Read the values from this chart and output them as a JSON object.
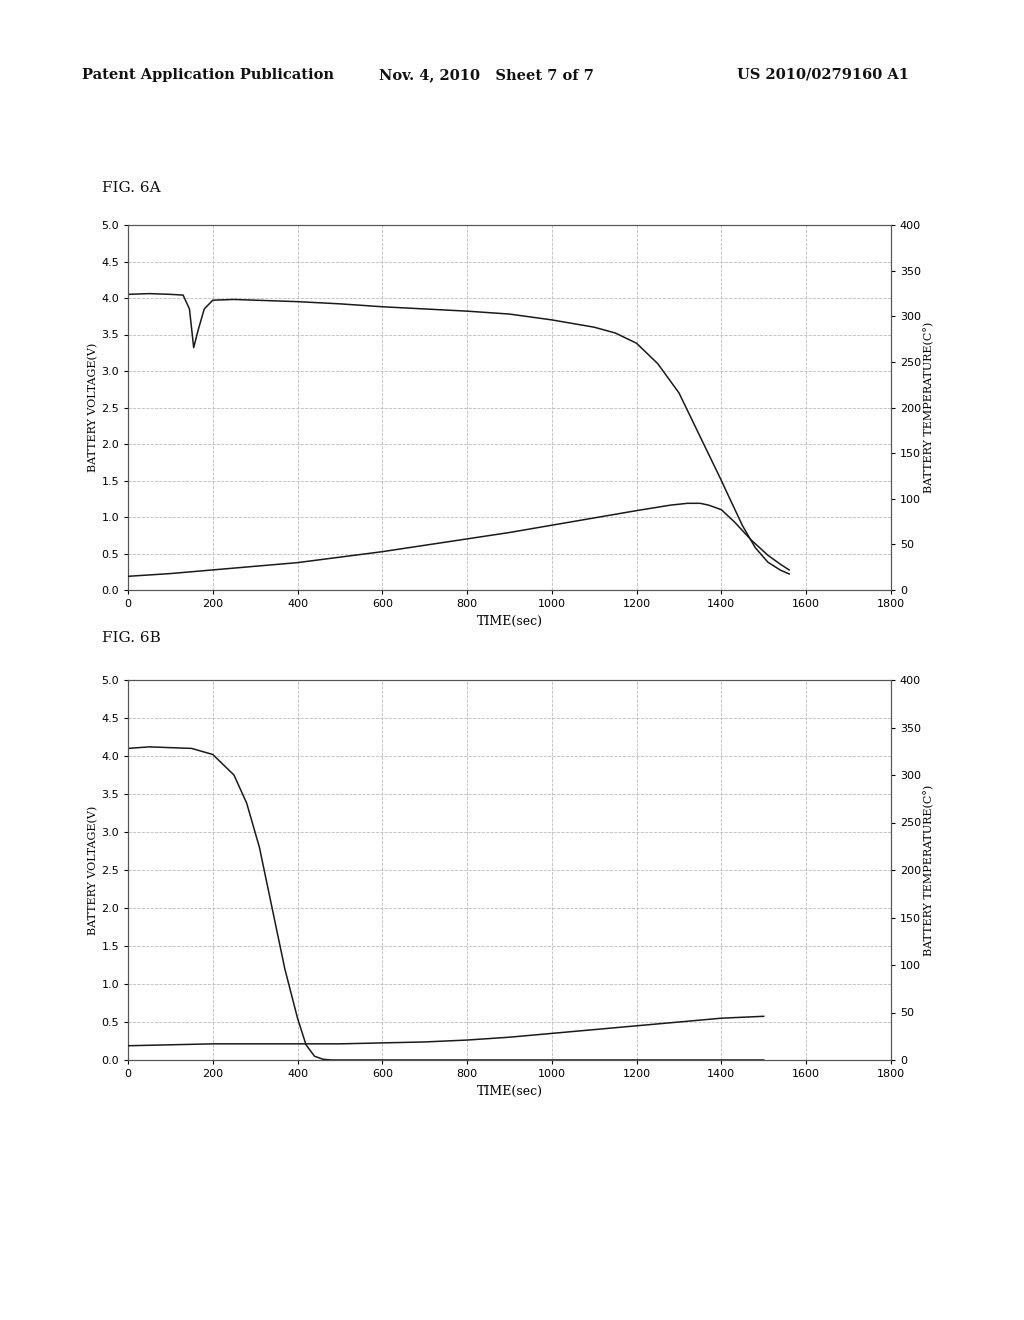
{
  "header_left": "Patent Application Publication",
  "header_mid": "Nov. 4, 2010   Sheet 7 of 7",
  "header_right": "US 2010/0279160 A1",
  "fig6a_label": "FIG. 6A",
  "fig6b_label": "FIG. 6B",
  "ylabel_left": "BATTERY VOLTAGE(V)",
  "ylabel_right": "BATTERY TEMPERATURE(C°)",
  "xlabel": "TIME(sec)",
  "xlim": [
    0,
    1800
  ],
  "ylim_left": [
    0,
    5
  ],
  "ylim_right": [
    0,
    400
  ],
  "xticks": [
    0,
    200,
    400,
    600,
    800,
    1000,
    1200,
    1400,
    1600,
    1800
  ],
  "yticks_left": [
    0,
    0.5,
    1,
    1.5,
    2,
    2.5,
    3,
    3.5,
    4,
    4.5,
    5
  ],
  "yticks_right": [
    0,
    50,
    100,
    150,
    200,
    250,
    300,
    350,
    400
  ],
  "background_color": "#ffffff",
  "line_color": "#1a1a1a",
  "grid_color": "#bbbbbb",
  "fig6a_voltage_x": [
    0,
    50,
    100,
    130,
    145,
    155,
    165,
    180,
    200,
    250,
    300,
    400,
    500,
    600,
    700,
    800,
    900,
    1000,
    1100,
    1150,
    1200,
    1250,
    1300,
    1350,
    1400,
    1420,
    1450,
    1480,
    1510,
    1540,
    1560
  ],
  "fig6a_voltage_y": [
    4.05,
    4.06,
    4.05,
    4.04,
    3.85,
    3.32,
    3.55,
    3.85,
    3.97,
    3.98,
    3.97,
    3.95,
    3.92,
    3.88,
    3.85,
    3.82,
    3.78,
    3.7,
    3.6,
    3.52,
    3.38,
    3.1,
    2.7,
    2.1,
    1.5,
    1.25,
    0.88,
    0.58,
    0.38,
    0.27,
    0.22
  ],
  "fig6a_temp_x": [
    0,
    100,
    200,
    300,
    400,
    500,
    600,
    700,
    800,
    900,
    1000,
    1100,
    1200,
    1280,
    1320,
    1350,
    1370,
    1400,
    1430,
    1470,
    1510,
    1540,
    1560
  ],
  "fig6a_temp_y": [
    15,
    18,
    22,
    26,
    30,
    36,
    42,
    49,
    56,
    63,
    71,
    79,
    87,
    93,
    95,
    95,
    93,
    88,
    75,
    55,
    38,
    28,
    22
  ],
  "fig6b_voltage_x": [
    0,
    50,
    100,
    150,
    200,
    250,
    280,
    310,
    340,
    370,
    400,
    420,
    440,
    460,
    480,
    500,
    600,
    700,
    800,
    900,
    1000,
    1100,
    1200,
    1300,
    1400,
    1500
  ],
  "fig6b_voltage_y": [
    4.1,
    4.12,
    4.11,
    4.1,
    4.02,
    3.75,
    3.38,
    2.8,
    2.0,
    1.2,
    0.55,
    0.2,
    0.05,
    0.01,
    0.0,
    0.0,
    0.0,
    0.0,
    0.0,
    0.0,
    0.0,
    0.0,
    0.0,
    0.0,
    0.0,
    0.0
  ],
  "fig6b_temp_x": [
    0,
    100,
    200,
    300,
    400,
    500,
    600,
    700,
    800,
    900,
    1000,
    1100,
    1200,
    1300,
    1350,
    1400,
    1450,
    1500
  ],
  "fig6b_temp_y": [
    15,
    16,
    17,
    17,
    17,
    17,
    18,
    19,
    21,
    24,
    28,
    32,
    36,
    40,
    42,
    44,
    45,
    46
  ]
}
